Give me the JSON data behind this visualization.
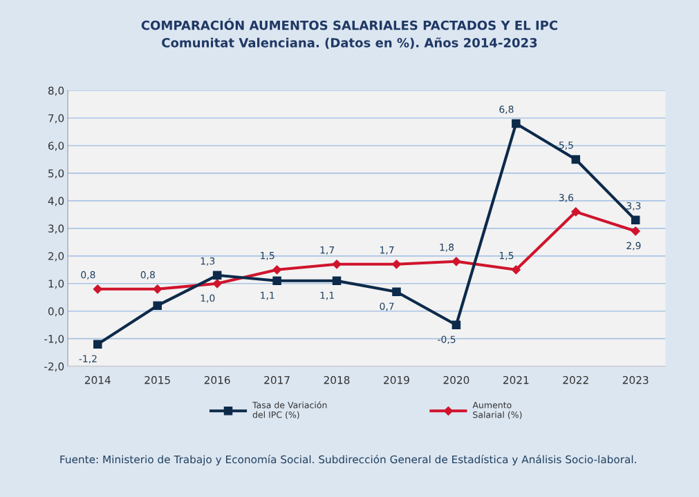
{
  "chart_data": {
    "type": "line",
    "title": "COMPARACIÓN AUMENTOS SALARIALES PACTADOS Y EL IPC",
    "subtitle": "Comunitat Valenciana. (Datos en %). Años 2014-2023",
    "categories": [
      "2014",
      "2015",
      "2016",
      "2017",
      "2018",
      "2019",
      "2020",
      "2021",
      "2022",
      "2023"
    ],
    "series": [
      {
        "name": "Tasa de Variación\ndel IPC (%)",
        "color": "#0d2a4a",
        "marker": "square",
        "values": [
          -1.2,
          0.2,
          1.3,
          1.1,
          1.1,
          0.7,
          -0.5,
          6.8,
          5.5,
          3.3
        ],
        "value_labels": [
          "-1,2",
          null,
          "1,3",
          "1,1",
          "1,1",
          "0,7",
          "-0,5",
          "6,8",
          "5,5",
          "3,3"
        ]
      },
      {
        "name": "Aumento\nSalarial (%)",
        "color": "#d0142c",
        "marker": "diamond",
        "values": [
          0.8,
          0.8,
          1.0,
          1.5,
          1.7,
          1.7,
          1.8,
          1.5,
          3.6,
          2.9
        ],
        "value_labels": [
          "0,8",
          "0,8",
          "1,0",
          "1,5",
          "1,7",
          "1,7",
          "1,8",
          "1,5",
          "3,6",
          "2,9"
        ]
      }
    ],
    "ylim": [
      -2,
      8
    ],
    "yticks": [
      {
        "value": -2,
        "label": "-2,0"
      },
      {
        "value": -1,
        "label": "-1,0"
      },
      {
        "value": 0,
        "label": "0,0"
      },
      {
        "value": 1,
        "label": "1,0"
      },
      {
        "value": 2,
        "label": "2,0"
      },
      {
        "value": 3,
        "label": "3,0"
      },
      {
        "value": 4,
        "label": "4,0"
      },
      {
        "value": 5,
        "label": "5,0"
      },
      {
        "value": 6,
        "label": "6,0"
      },
      {
        "value": 7,
        "label": "7,0"
      },
      {
        "value": 8,
        "label": "8,0"
      }
    ],
    "grid": "y",
    "legend": "bottom",
    "line_style": "solid",
    "annotations": [
      "Fuente: Ministerio de Trabajo y Economía Social. Subdirección General de Estadística y Análisis Socio-laboral."
    ]
  }
}
